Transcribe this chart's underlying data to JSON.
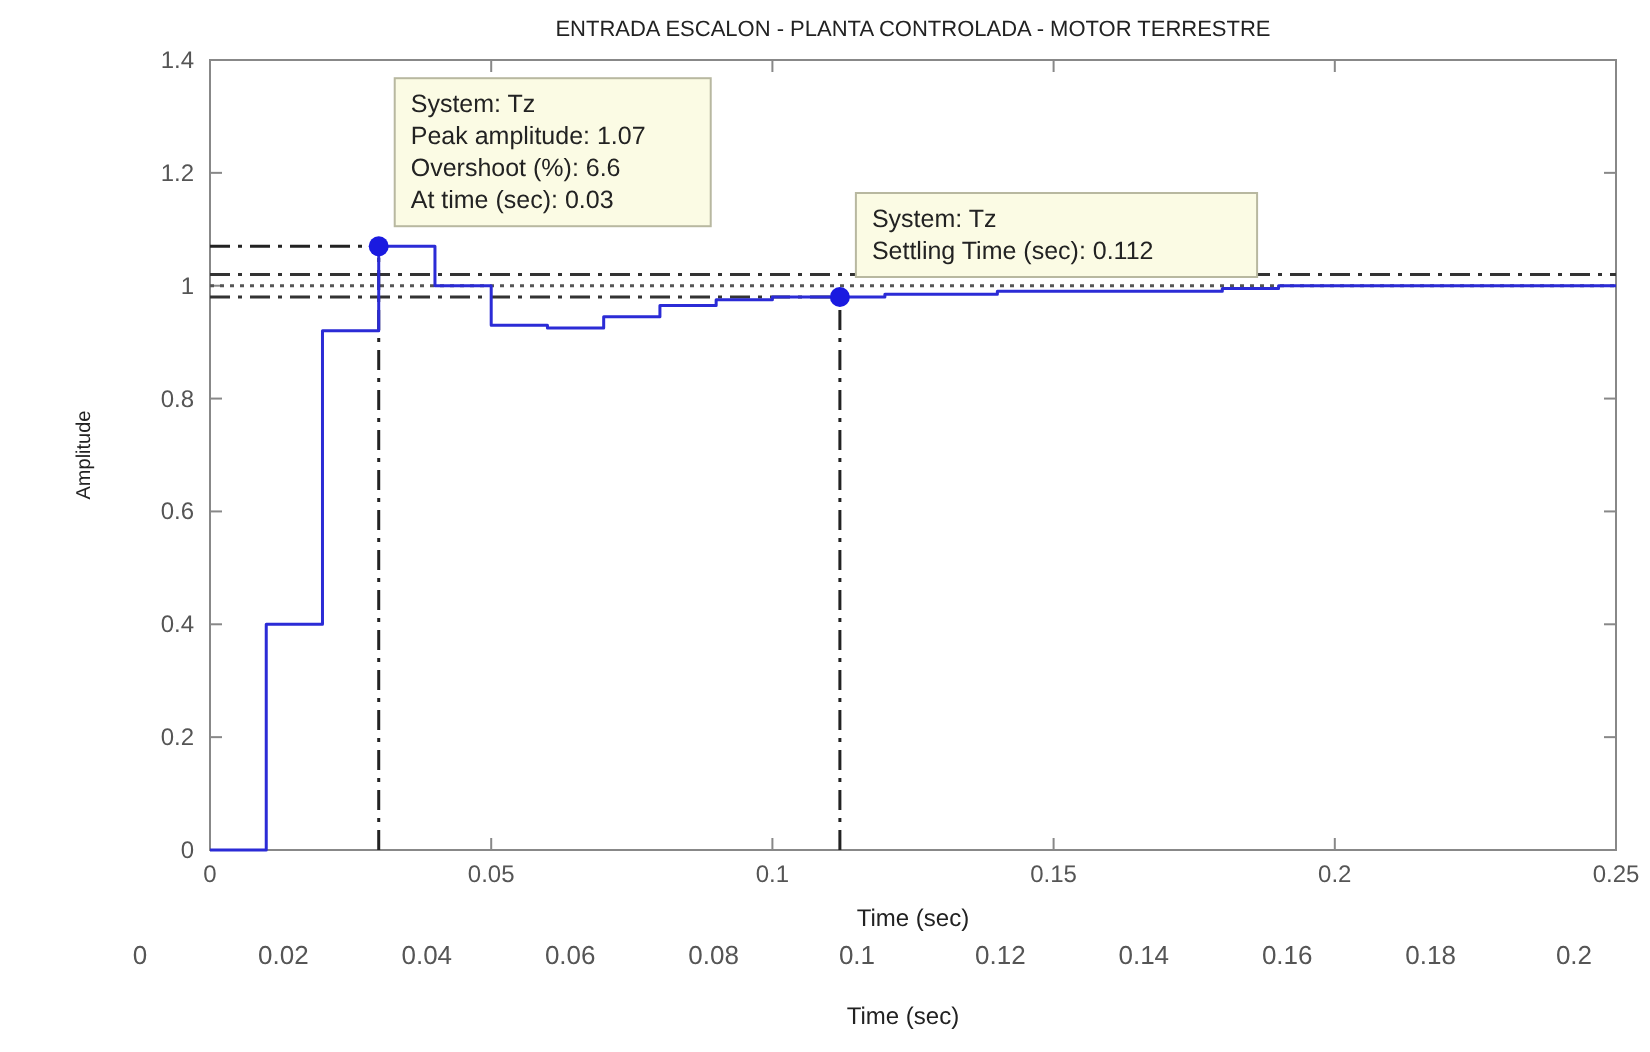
{
  "chart_data": {
    "type": "step",
    "title": "ENTRADA ESCALON - PLANTA CONTROLADA - MOTOR TERRESTRE",
    "xlabel": "Time (sec)",
    "ylabel": "Amplitude",
    "x2label": "Time (sec)",
    "x": [
      0,
      0.01,
      0.02,
      0.03,
      0.04,
      0.05,
      0.06,
      0.07,
      0.08,
      0.09,
      0.1,
      0.11,
      0.12,
      0.13,
      0.14,
      0.15,
      0.16,
      0.17,
      0.18,
      0.19,
      0.2,
      0.21,
      0.22,
      0.23,
      0.24,
      0.25
    ],
    "series": [
      {
        "color": "#2b2bd6",
        "values": [
          0,
          0.4,
          0.92,
          1.07,
          1.0,
          0.93,
          0.925,
          0.945,
          0.965,
          0.975,
          0.98,
          0.98,
          0.985,
          0.985,
          0.99,
          0.99,
          0.99,
          0.99,
          0.995,
          1.0,
          1.0,
          1.0,
          1.0,
          1.0,
          1.0,
          1.0
        ]
      }
    ],
    "xlim": [
      0,
      0.25
    ],
    "xticks": [
      0,
      0.05,
      0.1,
      0.15,
      0.2,
      0.25
    ],
    "ylim": [
      0,
      1.4
    ],
    "yticks": [
      0,
      0.2,
      0.4,
      0.6,
      0.8,
      1,
      1.2,
      1.4
    ],
    "x2lim": [
      0,
      0.2
    ],
    "x2ticks": [
      0,
      0.02,
      0.04,
      0.06,
      0.08,
      0.1,
      0.12,
      0.14,
      0.16,
      0.18,
      0.2
    ],
    "ref_lines": [
      {
        "axis": "y",
        "value": 1.02,
        "color": "#333333",
        "line_style": "dashdot"
      },
      {
        "axis": "y",
        "value": 1.0,
        "color": "#555555",
        "line_style": "dotted"
      },
      {
        "axis": "y",
        "value": 0.98,
        "color": "#333333",
        "line_style": "dashdot"
      },
      {
        "axis": "y",
        "value": 1.07,
        "color": "#222222",
        "line_style": "dashdot"
      },
      {
        "axis": "x",
        "value": 0.03,
        "color": "#222222",
        "line_style": "dashdot"
      },
      {
        "axis": "x",
        "value": 0.112,
        "color": "#222222",
        "line_style": "dashdot"
      }
    ],
    "annotations": [
      {
        "text": "System: Tz\nPeak amplitude: 1.07\nOvershoot (%): 6.6\nAt time (sec): 0.03",
        "x": 0.03,
        "y": 1.07
      },
      {
        "text": "System: Tz\nSettling Time (sec): 0.112",
        "x": 0.112,
        "y": 0.98
      }
    ],
    "grid": false,
    "marker": "none",
    "line_style": "solid"
  }
}
